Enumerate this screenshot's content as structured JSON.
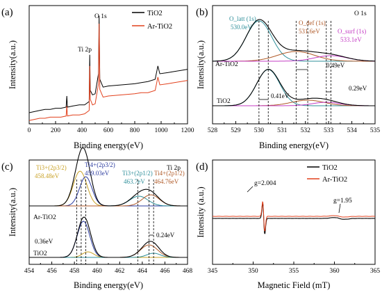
{
  "colors": {
    "black": "#000000",
    "red": "#e2401c",
    "olive": "#c9a227",
    "navy": "#2a3a9e",
    "teal": "#2f8f9a",
    "brown": "#b05a28",
    "magenta": "#c43cc4",
    "grey": "#8a8a8a"
  },
  "chart_data": [
    {
      "type": "line",
      "panel_label": "(a)",
      "xlabel": "Binding energy(eV)",
      "ylabel": "Intensity(a.u.)",
      "xlim": [
        0,
        1200
      ],
      "xticks": [
        "0",
        "200",
        "400",
        "600",
        "800",
        "1000",
        "1200"
      ],
      "legend": [
        "TiO2",
        "Ar-TiO2"
      ],
      "peak_labels": [
        "Ti 2p",
        "O 1s"
      ],
      "series": [
        {
          "name": "TiO2",
          "color": "black",
          "x": [
            0,
            40,
            80,
            120,
            160,
            200,
            240,
            280,
            285,
            290,
            330,
            380,
            420,
            455,
            459,
            463,
            480,
            500,
            525,
            530,
            535,
            560,
            600,
            700,
            800,
            850,
            900,
            955,
            975,
            990,
            1050,
            1100,
            1150,
            1200
          ],
          "y": [
            0.1,
            0.11,
            0.12,
            0.13,
            0.13,
            0.14,
            0.14,
            0.15,
            0.25,
            0.15,
            0.16,
            0.17,
            0.17,
            0.2,
            0.62,
            0.3,
            0.26,
            0.27,
            0.45,
            0.97,
            0.4,
            0.33,
            0.34,
            0.35,
            0.36,
            0.37,
            0.38,
            0.4,
            0.52,
            0.45,
            0.46,
            0.47,
            0.48,
            0.49
          ]
        },
        {
          "name": "Ar-TiO2",
          "color": "red",
          "x": [
            0,
            40,
            80,
            120,
            160,
            200,
            240,
            280,
            285,
            290,
            330,
            380,
            420,
            455,
            459,
            463,
            480,
            500,
            525,
            530,
            535,
            560,
            600,
            700,
            800,
            850,
            900,
            955,
            975,
            990,
            1050,
            1100,
            1150,
            1200
          ],
          "y": [
            0.03,
            0.04,
            0.05,
            0.05,
            0.06,
            0.06,
            0.06,
            0.07,
            0.16,
            0.07,
            0.08,
            0.08,
            0.09,
            0.12,
            0.52,
            0.22,
            0.17,
            0.18,
            0.36,
            0.9,
            0.31,
            0.24,
            0.25,
            0.26,
            0.27,
            0.28,
            0.28,
            0.3,
            0.42,
            0.35,
            0.36,
            0.37,
            0.38,
            0.39
          ]
        }
      ]
    },
    {
      "type": "line",
      "panel_label": "(b)",
      "corner_label": "O 1s",
      "xlabel": "Binding energy(eV)",
      "ylabel": "Intensity(a.u.)",
      "xlim": [
        528,
        535
      ],
      "xticks": [
        "528",
        "529",
        "530",
        "531",
        "532",
        "533",
        "534",
        "535"
      ],
      "component_labels": [
        {
          "name": "O_latt (1s)",
          "value": "530.0eV",
          "color": "teal"
        },
        {
          "name": "O_def (1s)",
          "value": "531.6eV",
          "color": "brown"
        },
        {
          "name": "O_surf (1s)",
          "value": "533.1eV",
          "color": "magenta"
        }
      ],
      "sample_labels": [
        "Ar-TiO2",
        "TiO2"
      ],
      "shift_labels": [
        "0.49eV",
        "0.41eV",
        "0.29eV"
      ],
      "reference_lines_x": [
        530.0,
        530.4,
        531.6,
        532.1,
        532.9,
        533.1
      ]
    },
    {
      "type": "line",
      "panel_label": "(c)",
      "corner_label": "Ti 2p",
      "xlabel": "Binding energy(eV)",
      "ylabel": "Intensity(a.u.)",
      "xlim": [
        454,
        468
      ],
      "xticks": [
        "454",
        "456",
        "458",
        "460",
        "462",
        "464",
        "466",
        "468"
      ],
      "component_labels": [
        {
          "name": "Ti3+(2p3/2)",
          "value": "458.48eV",
          "color": "olive"
        },
        {
          "name": "Ti4+(2p3/2)",
          "value": "459.03eV",
          "color": "navy"
        },
        {
          "name": "Ti3+(2p1/2)",
          "value": "463.7eV",
          "color": "teal"
        },
        {
          "name": "Ti4+(2p1/2)",
          "value": "464.76eV",
          "color": "brown"
        }
      ],
      "sample_labels": [
        "Ar-TiO2",
        "TiO2"
      ],
      "shift_labels": [
        "0.36eV",
        "0.24eV"
      ],
      "reference_lines_x": [
        458.2,
        458.6,
        459.0,
        463.6,
        464.6,
        465.0
      ]
    },
    {
      "type": "line",
      "panel_label": "(d)",
      "xlabel": "Magnetic Field (mT)",
      "ylabel": "Intensity (a.u.)",
      "xlim": [
        345,
        365
      ],
      "xticks": [
        "345",
        "350",
        "355",
        "360",
        "365"
      ],
      "legend": [
        "TiO2",
        "Ar-TiO2"
      ],
      "g_labels": [
        {
          "text": "g=2.004",
          "x": 351.3
        },
        {
          "text": "g=1.95",
          "x": 360.6
        }
      ]
    }
  ]
}
